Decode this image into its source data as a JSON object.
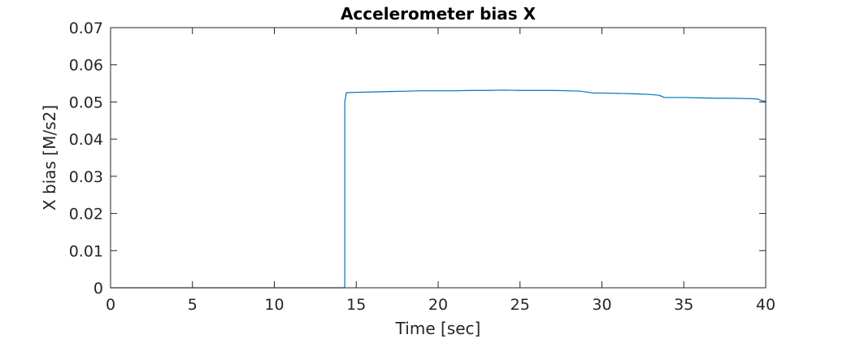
{
  "chart_data": {
    "type": "line",
    "title": "Accelerometer bias X",
    "xlabel": "Time [sec]",
    "ylabel": "X bias [M/s2]",
    "xlim": [
      0,
      40
    ],
    "ylim": [
      0,
      0.07
    ],
    "xticks": [
      0,
      5,
      10,
      15,
      20,
      25,
      30,
      35,
      40
    ],
    "xtick_labels": [
      "0",
      "5",
      "10",
      "15",
      "20",
      "25",
      "30",
      "35",
      "40"
    ],
    "yticks": [
      0,
      0.01,
      0.02,
      0.03,
      0.04,
      0.05,
      0.06,
      0.07
    ],
    "ytick_labels": [
      "0",
      "0.01",
      "0.02",
      "0.03",
      "0.04",
      "0.05",
      "0.06",
      "0.07"
    ],
    "grid": false,
    "series": [
      {
        "color": "#0072BD",
        "x": [
          0,
          14.3,
          14.3,
          14.4,
          15,
          16,
          17,
          18,
          19,
          20,
          21,
          22,
          23,
          24,
          25,
          26,
          27,
          28,
          28.7,
          29.5,
          30,
          31,
          32,
          33,
          33.5,
          33.8,
          34.5,
          35,
          36,
          37,
          38,
          39,
          39.5,
          39.8,
          40
        ],
        "y": [
          0,
          0,
          0.05,
          0.0525,
          0.0526,
          0.0527,
          0.0528,
          0.0529,
          0.053,
          0.053,
          0.053,
          0.0531,
          0.0531,
          0.0532,
          0.0531,
          0.0531,
          0.0531,
          0.053,
          0.0529,
          0.0524,
          0.0524,
          0.0523,
          0.0522,
          0.052,
          0.0518,
          0.0512,
          0.0512,
          0.0512,
          0.0511,
          0.051,
          0.051,
          0.0509,
          0.0508,
          0.0503,
          0.0502
        ]
      }
    ]
  }
}
